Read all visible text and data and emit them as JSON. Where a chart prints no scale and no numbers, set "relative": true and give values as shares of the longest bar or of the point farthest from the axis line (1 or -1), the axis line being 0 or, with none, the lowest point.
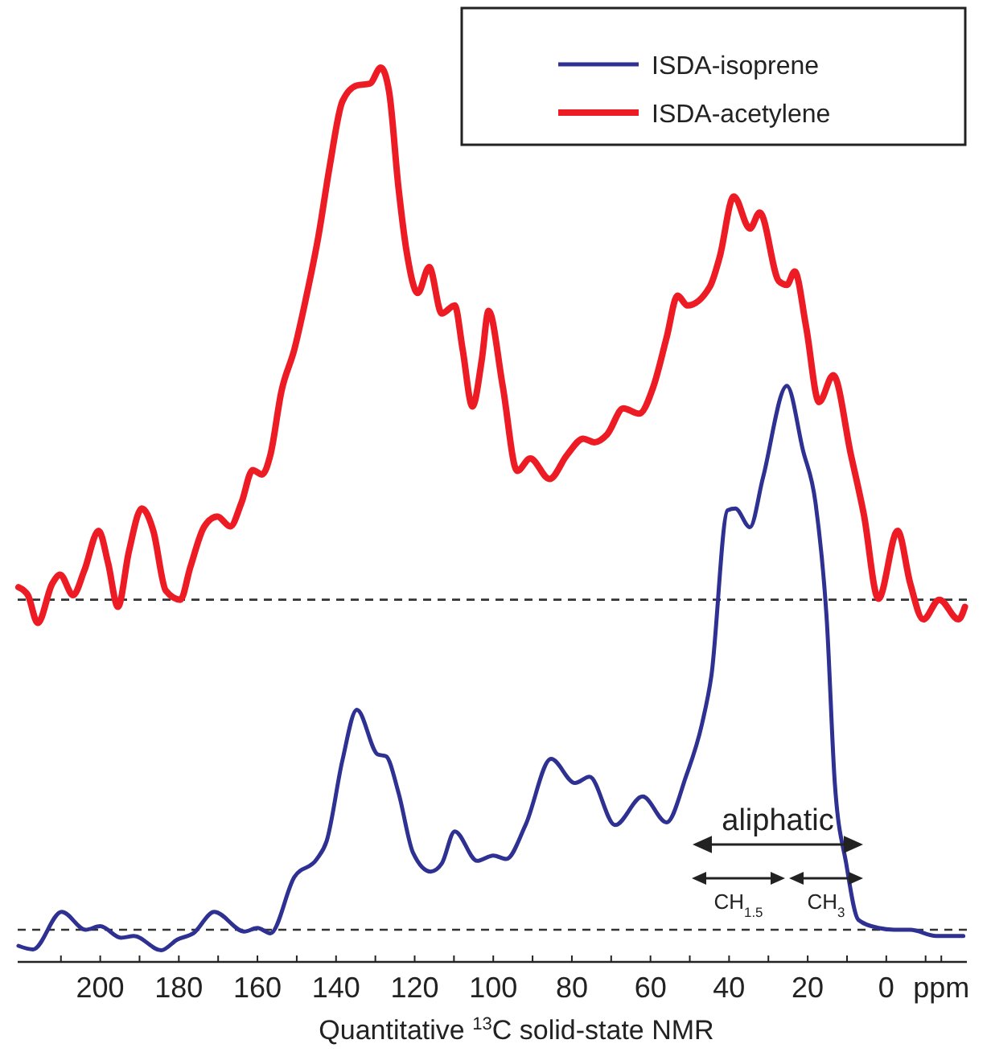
{
  "chart_data": {
    "type": "line",
    "relative": true,
    "xlabel": "Quantitative $^{13}$C solid-state NMR",
    "xlim": [
      221,
      -20.5
    ],
    "xticks": [
      {
        "value": 210,
        "label": null
      },
      200,
      {
        "value": 190,
        "label": null
      },
      180,
      {
        "value": 170,
        "label": null
      },
      160,
      {
        "value": 150,
        "label": null
      },
      140,
      {
        "value": 130,
        "label": null
      },
      120,
      {
        "value": 110,
        "label": null
      },
      100,
      {
        "value": 90,
        "label": null
      },
      80,
      {
        "value": 70,
        "label": null
      },
      60,
      {
        "value": 50,
        "label": null
      },
      40,
      {
        "value": 30,
        "label": null
      },
      20,
      {
        "value": 10,
        "label": null
      },
      0,
      {
        "value": -10,
        "label": null
      },
      {
        "value": -14,
        "label": "ppm"
      }
    ],
    "legend": "top right",
    "grid": false,
    "series": [
      {
        "name": "ISDA-isoprene",
        "color": "#2e3192",
        "x": [
          220.8,
          217.1,
          209.8,
          203.7,
          200.0,
          194.7,
          191.4,
          184.5,
          180.4,
          176.3,
          171.0,
          163.3,
          160.0,
          156.7,
          150.6,
          144.9,
          142.4,
          138.4,
          134.7,
          129.4,
          127.3,
          124.1,
          120.4,
          115.9,
          113.1,
          109.8,
          104.1,
          100.0,
          96.7,
          91.8,
          85.3,
          79.2,
          75.5,
          69.0,
          62.0,
          55.9,
          51.0,
          46.9,
          44.5,
          40.4,
          38.4,
          34.7,
          31.4,
          25.3,
          21.2,
          18.0,
          15.1,
          13.1,
          10.2,
          7.1,
          2.0,
          -2.0,
          -6.1,
          -12.7,
          -19.6
        ],
        "values": [
          0.018,
          0.014,
          0.056,
          0.036,
          0.04,
          0.027,
          0.029,
          0.013,
          0.025,
          0.032,
          0.056,
          0.034,
          0.038,
          0.032,
          0.095,
          0.115,
          0.135,
          0.225,
          0.282,
          0.232,
          0.23,
          0.189,
          0.122,
          0.101,
          0.11,
          0.146,
          0.113,
          0.119,
          0.115,
          0.153,
          0.227,
          0.2,
          0.207,
          0.153,
          0.185,
          0.156,
          0.207,
          0.266,
          0.32,
          0.505,
          0.507,
          0.486,
          0.541,
          0.644,
          0.572,
          0.513,
          0.379,
          0.2,
          0.11,
          0.047,
          0.038,
          0.036,
          0.036,
          0.029,
          0.029
        ]
      },
      {
        "name": "ISDA-acetylene",
        "color": "#ed1c24",
        "x": [
          220.8,
          218.4,
          215.9,
          212.2,
          210.2,
          206.9,
          204.1,
          200.4,
          198.0,
          195.5,
          192.7,
          189.4,
          186.5,
          183.3,
          179.6,
          177.1,
          173.5,
          170.2,
          166.9,
          164.1,
          161.2,
          158.8,
          156.7,
          153.9,
          150.6,
          147.8,
          144.5,
          141.6,
          138.4,
          134.7,
          131.4,
          128.6,
          126.5,
          124.1,
          122.0,
          119.2,
          116.3,
          113.1,
          109.8,
          107.8,
          105.3,
          102.9,
          101.2,
          97.6,
          93.9,
          90.6,
          85.7,
          81.2,
          77.1,
          74.3,
          71.0,
          66.9,
          62.9,
          59.2,
          55.9,
          53.1,
          50.6,
          44.9,
          42.4,
          38.8,
          34.7,
          32.2,
          27.3,
          25.3,
          23.3,
          20.4,
          17.1,
          13.5,
          9.0,
          5.7,
          2.0,
          -2.9,
          -6.1,
          -9.4,
          -13.5,
          -18.4,
          -20.0
        ],
        "values": [
          0.419,
          0.41,
          0.379,
          0.423,
          0.433,
          0.41,
          0.437,
          0.482,
          0.446,
          0.397,
          0.459,
          0.507,
          0.482,
          0.415,
          0.405,
          0.441,
          0.487,
          0.498,
          0.487,
          0.513,
          0.55,
          0.545,
          0.567,
          0.638,
          0.685,
          0.739,
          0.811,
          0.89,
          0.962,
          0.98,
          0.982,
          1,
          0.973,
          0.865,
          0.793,
          0.748,
          0.777,
          0.725,
          0.734,
          0.685,
          0.621,
          0.674,
          0.728,
          0.644,
          0.549,
          0.563,
          0.54,
          0.567,
          0.585,
          0.581,
          0.59,
          0.619,
          0.613,
          0.644,
          0.698,
          0.745,
          0.734,
          0.755,
          0.788,
          0.856,
          0.82,
          0.838,
          0.761,
          0.757,
          0.772,
          0.71,
          0.626,
          0.656,
          0.567,
          0.5,
          0.406,
          0.482,
          0.423,
          0.383,
          0.405,
          0.383,
          0.397
        ]
      }
    ],
    "ref_lines": [
      {
        "axis": "y",
        "value": 0.036,
        "line_style": "dashed",
        "color": "#333333"
      },
      {
        "axis": "y",
        "value": 0.405,
        "line_style": "dashed",
        "color": "#333333"
      }
    ],
    "annotations": [
      "aliphatic",
      "CH$_{1.5}$",
      "CH$_{3}$"
    ]
  }
}
